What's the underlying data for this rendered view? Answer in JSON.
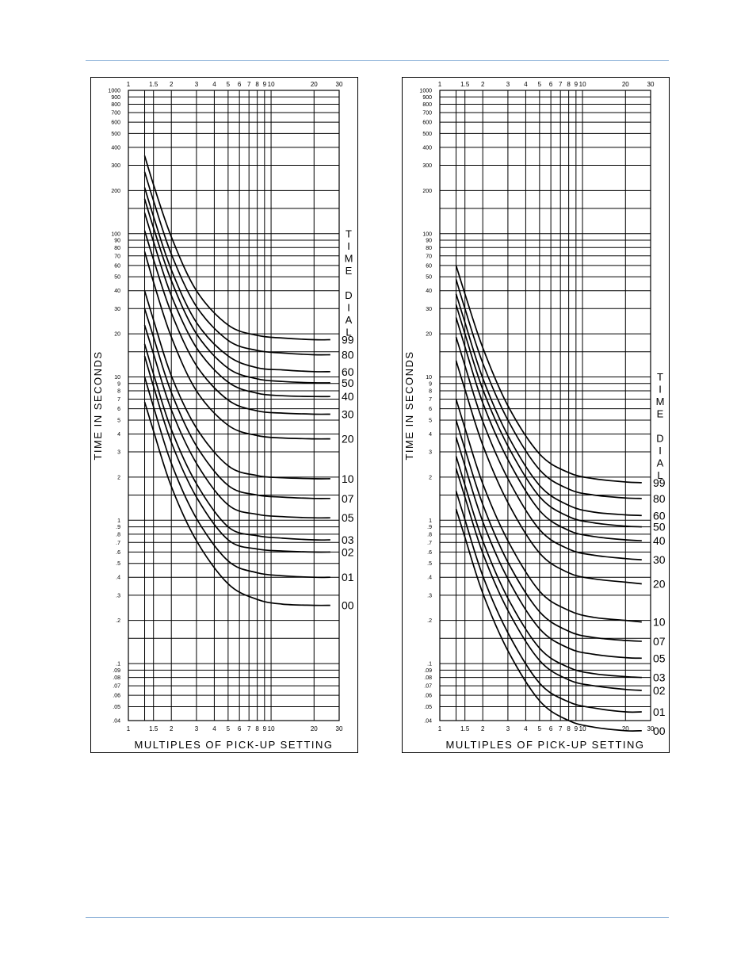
{
  "chart_data": [
    {
      "type": "line",
      "xlabel": "MULTIPLES OF PICK-UP SETTING",
      "ylabel": "TIME IN SECONDS",
      "side_label": "TIME DIAL",
      "xscale": "log",
      "yscale": "log",
      "xlim": [
        1,
        30
      ],
      "ylim": [
        0.04,
        1000
      ],
      "grid": true,
      "x_ticks": [
        "1",
        "1.5",
        "2",
        "3",
        "4",
        "5",
        "6",
        "7",
        "8",
        "9",
        "10",
        "20",
        "30"
      ],
      "y_ticks": [
        "1000",
        "900",
        "800",
        "700",
        "600",
        "500",
        "400",
        "300",
        "200",
        "100",
        "90",
        "80",
        "70",
        "60",
        "50",
        "40",
        "30",
        "20",
        "10",
        "9",
        "8",
        "7",
        "6",
        "5",
        "4",
        "3",
        "2",
        "1",
        ".9",
        ".8",
        ".7",
        ".6",
        ".5",
        ".4",
        ".3",
        ".2",
        ".1",
        ".09",
        ".08",
        ".07",
        ".06",
        ".05",
        ".04"
      ],
      "series": [
        {
          "name": "99",
          "x": [
            1.3,
            1.5,
            2,
            3,
            5,
            8,
            12,
            20,
            26
          ],
          "y": [
            350,
            220,
            95,
            40,
            23,
            19.5,
            18.7,
            18.2,
            18.2
          ]
        },
        {
          "name": "80",
          "x": [
            1.3,
            1.5,
            2,
            3,
            5,
            8,
            12,
            20,
            26
          ],
          "y": [
            270,
            170,
            72,
            31,
            18,
            15.3,
            14.7,
            14.3,
            14.3
          ]
        },
        {
          "name": "60",
          "x": [
            1.3,
            1.5,
            2,
            3,
            5,
            8,
            12,
            20,
            26
          ],
          "y": [
            210,
            132,
            56,
            24,
            14,
            11.6,
            11.2,
            10.9,
            10.9
          ]
        },
        {
          "name": "50",
          "x": [
            1.3,
            1.5,
            2,
            3,
            5,
            8,
            12,
            20,
            26
          ],
          "y": [
            175,
            110,
            47,
            20,
            11.5,
            9.7,
            9.3,
            9.1,
            9.1
          ]
        },
        {
          "name": "40",
          "x": [
            1.3,
            1.5,
            2,
            3,
            5,
            8,
            12,
            20,
            26
          ],
          "y": [
            140,
            88,
            37,
            16,
            9.2,
            7.7,
            7.4,
            7.3,
            7.3
          ]
        },
        {
          "name": "30",
          "x": [
            1.3,
            1.5,
            2,
            3,
            5,
            8,
            12,
            20,
            26
          ],
          "y": [
            105,
            66,
            28,
            12,
            6.9,
            5.8,
            5.6,
            5.5,
            5.5
          ]
        },
        {
          "name": "20",
          "x": [
            1.3,
            1.5,
            2,
            3,
            5,
            8,
            12,
            20,
            26
          ],
          "y": [
            75,
            46,
            19,
            8,
            4.6,
            3.9,
            3.75,
            3.7,
            3.7
          ]
        },
        {
          "name": "10",
          "x": [
            1.3,
            1.5,
            2,
            3,
            5,
            8,
            12,
            20,
            26
          ],
          "y": [
            40,
            25,
            10.2,
            4.4,
            2.4,
            2.05,
            1.98,
            1.95,
            1.95
          ]
        },
        {
          "name": "07",
          "x": [
            1.3,
            1.5,
            2,
            3,
            5,
            8,
            12,
            20,
            26
          ],
          "y": [
            30,
            19,
            7.8,
            3.3,
            1.75,
            1.5,
            1.45,
            1.42,
            1.42
          ]
        },
        {
          "name": "05",
          "x": [
            1.3,
            1.5,
            2,
            3,
            5,
            8,
            12,
            20,
            26
          ],
          "y": [
            23,
            14.5,
            5.9,
            2.5,
            1.28,
            1.1,
            1.06,
            1.04,
            1.04
          ]
        },
        {
          "name": "03",
          "x": [
            1.3,
            1.5,
            2,
            3,
            5,
            8,
            12,
            20,
            26
          ],
          "y": [
            17,
            10.5,
            4.3,
            1.8,
            0.9,
            0.78,
            0.75,
            0.73,
            0.73
          ]
        },
        {
          "name": "02",
          "x": [
            1.3,
            1.5,
            2,
            3,
            5,
            8,
            12,
            20,
            26
          ],
          "y": [
            14,
            8.6,
            3.5,
            1.45,
            0.73,
            0.63,
            0.61,
            0.6,
            0.6
          ]
        },
        {
          "name": "01",
          "x": [
            1.3,
            1.5,
            2,
            3,
            5,
            8,
            12,
            20,
            26
          ],
          "y": [
            10,
            6.2,
            2.5,
            1.03,
            0.52,
            0.43,
            0.41,
            0.4,
            0.4
          ]
        },
        {
          "name": "00",
          "x": [
            1.3,
            1.5,
            2,
            3,
            5,
            8,
            12,
            20,
            26
          ],
          "y": [
            6.7,
            4.2,
            1.72,
            0.72,
            0.36,
            0.28,
            0.26,
            0.255,
            0.255
          ]
        }
      ]
    },
    {
      "type": "line",
      "xlabel": "MULTIPLES OF PICK-UP SETTING",
      "ylabel": "TIME IN SECONDS",
      "side_label": "TIME DIAL",
      "xscale": "log",
      "yscale": "log",
      "xlim": [
        1,
        30
      ],
      "ylim": [
        0.04,
        1000
      ],
      "grid": true,
      "x_ticks": [
        "1",
        "1.5",
        "2",
        "3",
        "4",
        "5",
        "6",
        "7",
        "8",
        "9",
        "10",
        "20",
        "30"
      ],
      "y_ticks": [
        "1000",
        "900",
        "800",
        "700",
        "600",
        "500",
        "400",
        "300",
        "200",
        "100",
        "90",
        "80",
        "70",
        "60",
        "50",
        "40",
        "30",
        "20",
        "10",
        "9",
        "8",
        "7",
        "6",
        "5",
        "4",
        "3",
        "2",
        "1",
        ".9",
        ".8",
        ".7",
        ".6",
        ".5",
        ".4",
        ".3",
        ".2",
        ".1",
        ".09",
        ".08",
        ".07",
        ".06",
        ".05",
        ".04"
      ],
      "series": [
        {
          "name": "99",
          "x": [
            1.3,
            1.5,
            2,
            3,
            5,
            8,
            12,
            20,
            26
          ],
          "y": [
            60,
            38,
            16,
            6.3,
            2.9,
            2.15,
            1.95,
            1.85,
            1.83
          ]
        },
        {
          "name": "80",
          "x": [
            1.3,
            1.5,
            2,
            3,
            5,
            8,
            12,
            20,
            26
          ],
          "y": [
            48,
            30,
            12.5,
            5,
            2.25,
            1.65,
            1.5,
            1.43,
            1.42
          ]
        },
        {
          "name": "60",
          "x": [
            1.3,
            1.5,
            2,
            3,
            5,
            8,
            12,
            20,
            26
          ],
          "y": [
            38,
            24,
            9.8,
            3.9,
            1.75,
            1.27,
            1.14,
            1.09,
            1.08
          ]
        },
        {
          "name": "50",
          "x": [
            1.3,
            1.5,
            2,
            3,
            5,
            8,
            12,
            20,
            26
          ],
          "y": [
            32,
            20,
            8.2,
            3.3,
            1.46,
            1.06,
            0.96,
            0.91,
            0.9
          ]
        },
        {
          "name": "40",
          "x": [
            1.3,
            1.5,
            2,
            3,
            5,
            8,
            12,
            20,
            26
          ],
          "y": [
            26,
            16.3,
            6.6,
            2.65,
            1.17,
            0.85,
            0.77,
            0.73,
            0.72
          ]
        },
        {
          "name": "30",
          "x": [
            1.3,
            1.5,
            2,
            3,
            5,
            8,
            12,
            20,
            26
          ],
          "y": [
            19,
            12,
            4.9,
            1.95,
            0.86,
            0.63,
            0.57,
            0.54,
            0.53
          ]
        },
        {
          "name": "20",
          "x": [
            1.3,
            1.5,
            2,
            3,
            5,
            8,
            12,
            20,
            26
          ],
          "y": [
            13,
            8.2,
            3.35,
            1.33,
            0.59,
            0.43,
            0.39,
            0.37,
            0.36
          ]
        },
        {
          "name": "10",
          "x": [
            1.3,
            1.5,
            2,
            3,
            5,
            8,
            12,
            20,
            26
          ],
          "y": [
            7,
            4.4,
            1.8,
            0.72,
            0.32,
            0.235,
            0.21,
            0.2,
            0.195
          ]
        },
        {
          "name": "07",
          "x": [
            1.3,
            1.5,
            2,
            3,
            5,
            8,
            12,
            20,
            26
          ],
          "y": [
            5,
            3.15,
            1.29,
            0.51,
            0.23,
            0.168,
            0.152,
            0.145,
            0.143
          ]
        },
        {
          "name": "05",
          "x": [
            1.3,
            1.5,
            2,
            3,
            5,
            8,
            12,
            20,
            26
          ],
          "y": [
            3.8,
            2.4,
            0.98,
            0.39,
            0.175,
            0.128,
            0.116,
            0.11,
            0.109
          ]
        },
        {
          "name": "03",
          "x": [
            1.3,
            1.5,
            2,
            3,
            5,
            8,
            12,
            20,
            26
          ],
          "y": [
            2.8,
            1.76,
            0.72,
            0.286,
            0.128,
            0.094,
            0.085,
            0.081,
            0.08
          ]
        },
        {
          "name": "02",
          "x": [
            1.3,
            1.5,
            2,
            3,
            5,
            8,
            12,
            20,
            26
          ],
          "y": [
            2.3,
            1.45,
            0.59,
            0.235,
            0.105,
            0.077,
            0.07,
            0.066,
            0.065
          ]
        },
        {
          "name": "01",
          "x": [
            1.3,
            1.5,
            2,
            3,
            5,
            8,
            12,
            20,
            26
          ],
          "y": [
            1.6,
            1.01,
            0.41,
            0.164,
            0.073,
            0.054,
            0.049,
            0.046,
            0.046
          ]
        },
        {
          "name": "00",
          "x": [
            1.3,
            1.5,
            2,
            3,
            5,
            8,
            12,
            20,
            26
          ],
          "y": [
            1.2,
            0.76,
            0.31,
            0.123,
            0.055,
            0.04,
            0.036,
            0.034,
            0.034
          ]
        }
      ]
    }
  ]
}
